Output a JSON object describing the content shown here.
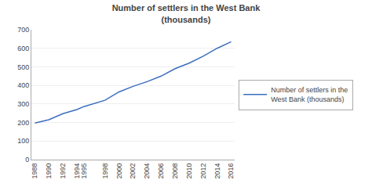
{
  "chart_data": {
    "type": "line",
    "title": "Number of settlers in the West Bank\n(thousands)",
    "x": [
      1988,
      1990,
      1992,
      1994,
      1995,
      1998,
      2000,
      2002,
      2004,
      2006,
      2008,
      2010,
      2012,
      2014,
      2016
    ],
    "series": [
      {
        "name": "Number of settlers in the\nWest Bank (thousands)",
        "color": "#3C6EBF",
        "values": [
          197,
          215,
          248,
          270,
          286,
          320,
          365,
          395,
          420,
          450,
          490,
          520,
          557,
          600,
          635
        ]
      }
    ],
    "xlim": [
      1987.5,
      2016.5
    ],
    "xticks": [
      1988,
      1990,
      1992,
      1994,
      1995,
      1998,
      2000,
      2002,
      2004,
      2006,
      2008,
      2010,
      2012,
      2014,
      2016
    ],
    "ylim": [
      0,
      700
    ],
    "yticks": [
      0,
      100,
      200,
      300,
      400,
      500,
      600,
      700
    ],
    "grid": true,
    "legend": "right"
  }
}
